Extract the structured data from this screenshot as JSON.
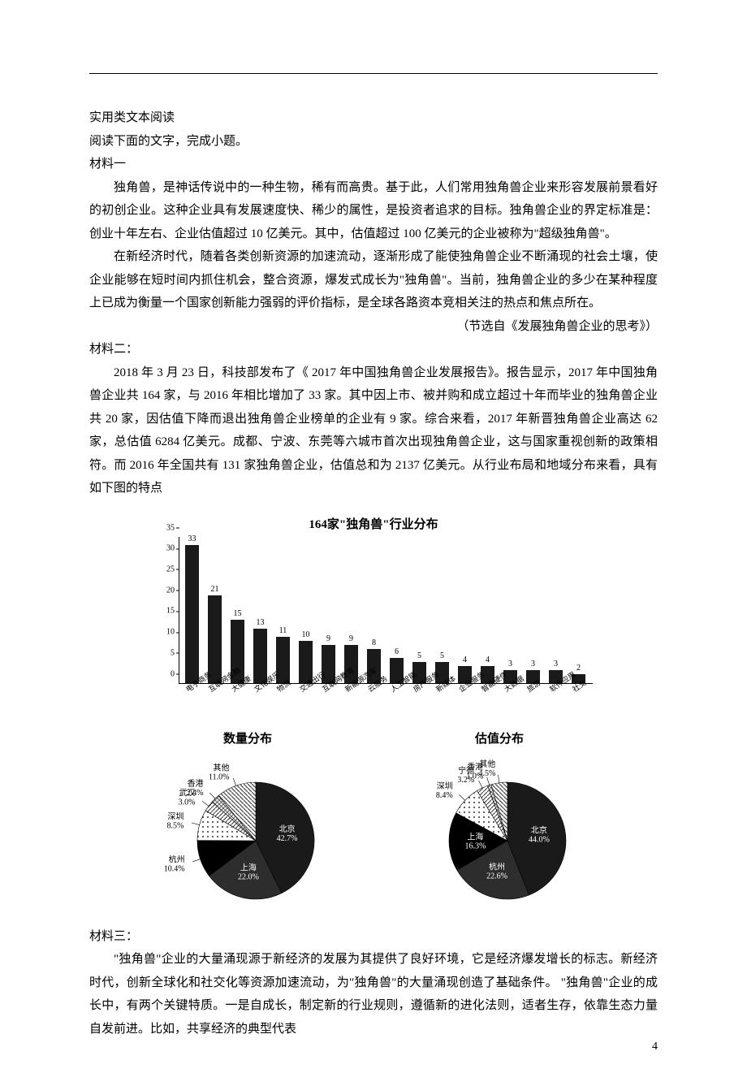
{
  "page": {
    "number": "4"
  },
  "text": {
    "t1": "实用类文本阅读",
    "t2": "阅读下面的文字，完成小题。",
    "m1_head": "材料一",
    "m1_p1": "独角兽，是神话传说中的一种生物，稀有而高贵。基于此，人们常用独角兽企业来形容发展前景看好的初创企业。这种企业具有发展速度快、稀少的属性，是投资者追求的目标。独角兽企业的界定标准是：创业十年左右、企业估值超过 10 亿美元。其中，估值超过 100 亿美元的企业被称为\"超级独角兽\"。",
    "m1_p2": "在新经济时代，随着各类创新资源的加速流动，逐渐形成了能使独角兽企业不断涌现的社会土壤，使企业能够在短时间内抓住机会，整合资源，爆发式成长为\"独角兽\"。当前，独角兽企业的多少在某种程度上已成为衡量一个国家创新能力强弱的评价指标，是全球各路资本竞相关注的热点和焦点所在。",
    "m1_src": "（节选自《发展独角兽企业的思考》）",
    "m2_head": "材料二：",
    "m2_p1": "2018 年 3 月 23 日，科技部发布了《 2017 年中国独角兽企业发展报告》。报告显示，2017 年中国独角兽企业共 164 家，与 2016 年相比增加了 33 家。其中因上市、被并购和成立超过十年而毕业的独角兽企业共 20 家，因估值下降而退出独角兽企业榜单的企业有 9 家。综合来看，2017 年新晋独角兽企业高达 62 家，总估值 6284 亿美元。成都、宁波、东莞等六城市首次出现独角兽企业，这与国家重视创新的政策相符。而 2016 年全国共有 131 家独角兽企业，估值总和为 2137 亿美元。从行业布局和地域分布来看，具有如下图的特点",
    "m3_head": "材料三：",
    "m3_p1": "\"独角兽\"企业的大量涌现源于新经济的发展为其提供了良好环境，它是经济爆发增长的标志。新经济时代，创新全球化和社交化等资源加速流动，为\"独角兽\"的大量涌现创造了基础条件。 \"独角兽\"企业的成长中，有两个关键特质。一是自成长，制定新的行业规则，遵循新的进化法则，适者生存，依靠生态力量自发前进。比如，共享经济的典型代表"
  },
  "bar_chart": {
    "title": "164家\"独角兽\"行业分布",
    "ylim_max": 35,
    "yticks": [
      0,
      5,
      10,
      15,
      20,
      25,
      30,
      35
    ],
    "categories": [
      "电子商务",
      "互联网金融",
      "大健康",
      "文化娱乐",
      "物流",
      "交通出行",
      "互联网教育",
      "新能源汽车",
      "云服务",
      "人工智能",
      "房产服务",
      "新媒体",
      "企业服务",
      "智能硬件",
      "大数据",
      "旅游",
      "软件应用",
      "社交"
    ],
    "values": [
      33,
      21,
      15,
      13,
      11,
      10,
      9,
      9,
      8,
      6,
      5,
      5,
      4,
      4,
      3,
      3,
      3,
      2
    ],
    "bar_color": "#1a1a1a",
    "text_fontsize": 10
  },
  "pie_count": {
    "title": "数量分布",
    "slices": [
      {
        "label": "北京",
        "value": 42.7,
        "color": "#1a1a1a",
        "label_inside": true
      },
      {
        "label": "上海",
        "value": 22.0,
        "color": "#2d2d2d",
        "label_inside": true
      },
      {
        "label": "杭州",
        "value": 10.4,
        "color": "#000000",
        "label_inside": false
      },
      {
        "label": "深圳",
        "value": 8.5,
        "color": "#f2f2f2",
        "pattern": "dots",
        "label_inside": false
      },
      {
        "label": "武汉",
        "value": 3.0,
        "color": "#ffffff",
        "pattern": "hatch",
        "label_inside": false
      },
      {
        "label": "香港",
        "value": 2.4,
        "color": "#eaeaea",
        "pattern": "cross",
        "label_inside": false
      },
      {
        "label": "其他",
        "value": 11.0,
        "color": "#f5f5f5",
        "pattern": "diag",
        "label_inside": false
      }
    ]
  },
  "pie_value": {
    "title": "估值分布",
    "slices": [
      {
        "label": "北京",
        "value": 44.0,
        "color": "#1a1a1a",
        "label_inside": true
      },
      {
        "label": "杭州",
        "value": 22.6,
        "color": "#2d2d2d",
        "label_inside": true
      },
      {
        "label": "上海",
        "value": 16.3,
        "color": "#000000",
        "label_inside": true
      },
      {
        "label": "深圳",
        "value": 8.4,
        "color": "#f2f2f2",
        "pattern": "dots",
        "label_inside": false
      },
      {
        "label": "宁德",
        "value": 3.2,
        "color": "#ffffff",
        "pattern": "hatch",
        "label_inside": false
      },
      {
        "label": "香港",
        "value": 1.0,
        "color": "#eaeaea",
        "pattern": "cross",
        "label_inside": false
      },
      {
        "label": "其他",
        "value": 4.5,
        "color": "#f5f5f5",
        "pattern": "diag",
        "label_inside": false
      }
    ]
  }
}
